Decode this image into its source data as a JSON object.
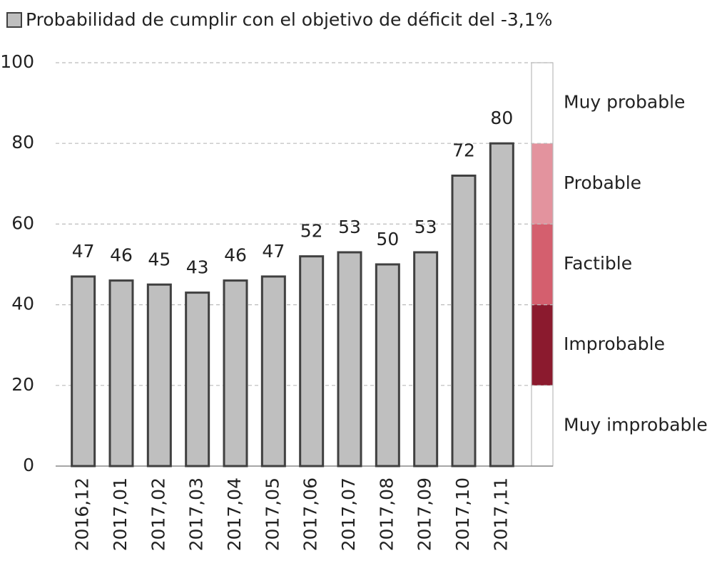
{
  "chart_data": {
    "type": "bar",
    "series": [
      {
        "name": "Probabilidad de cumplir con el objetivo de déficit del -3,1%",
        "color": "#bfbfbf",
        "values": [
          47,
          46,
          45,
          43,
          46,
          47,
          52,
          53,
          50,
          53,
          72,
          80
        ]
      }
    ],
    "categories": [
      "2016,12",
      "2017,01",
      "2017,02",
      "2017,03",
      "2017,04",
      "2017,05",
      "2017,06",
      "2017,07",
      "2017,08",
      "2017,09",
      "2017,10",
      "2017,11"
    ],
    "ylim": [
      0,
      100
    ],
    "yticks": [
      0,
      20,
      40,
      60,
      80,
      100
    ],
    "grid": true,
    "bands": [
      {
        "label": "Muy improbable",
        "from": 0,
        "to": 20,
        "color": "#ffffff"
      },
      {
        "label": "Improbable",
        "from": 20,
        "to": 40,
        "color": "#8b1a2e"
      },
      {
        "label": "Factible",
        "from": 40,
        "to": 60,
        "color": "#d45f6e"
      },
      {
        "label": "Probable",
        "from": 60,
        "to": 80,
        "color": "#e3939e"
      },
      {
        "label": "Muy probable",
        "from": 80,
        "to": 100,
        "color": "#ffffff"
      }
    ]
  }
}
